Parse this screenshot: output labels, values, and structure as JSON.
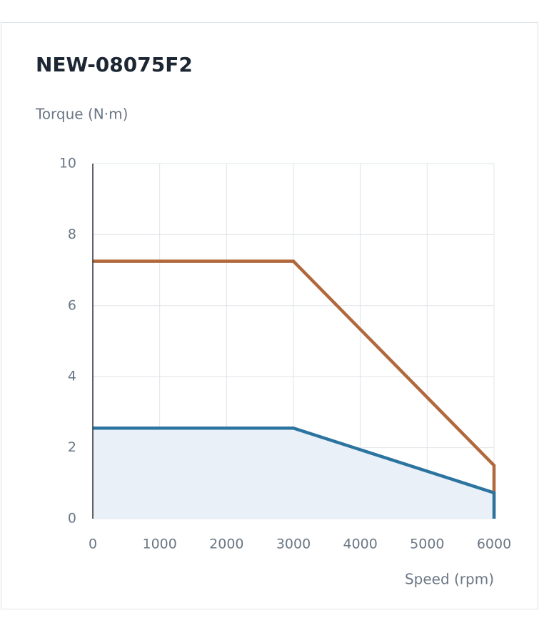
{
  "chart_data": {
    "type": "line",
    "title": "NEW-08075F2",
    "y_label": "Torque (N·m)",
    "x_label": "Speed (rpm)",
    "xlim": [
      0,
      6000
    ],
    "xticks": [
      0,
      1000,
      2000,
      3000,
      4000,
      5000,
      6000
    ],
    "ylim": [
      0,
      10
    ],
    "yticks": [
      0,
      2,
      4,
      6,
      8,
      10
    ],
    "grid": true,
    "series": [
      {
        "color": "#b0683c",
        "x": [
          0,
          3000,
          6000,
          6000
        ],
        "values": [
          7.25,
          7.25,
          1.5,
          0
        ]
      },
      {
        "color": "#2c74a0",
        "fill": "#e9f0f7",
        "x": [
          0,
          3000,
          6000,
          6000
        ],
        "values": [
          2.55,
          2.55,
          0.73,
          0
        ]
      }
    ]
  }
}
